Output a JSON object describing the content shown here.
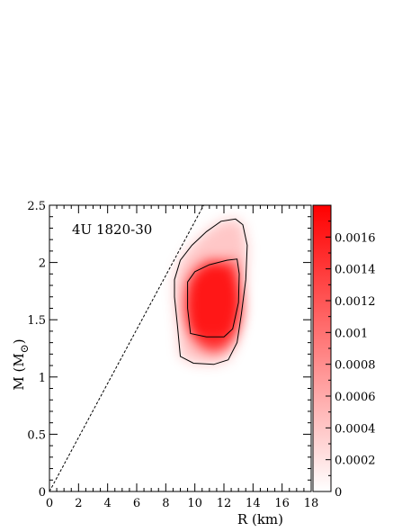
{
  "chart_data": {
    "type": "heatmap",
    "annotation": "4U 1820-30",
    "xlabel": "R (km)",
    "ylabel": "M (M",
    "ylabel_sub": "⊙",
    "ylabel_close": ")",
    "xlim": [
      0,
      18
    ],
    "ylim": [
      0,
      2.5
    ],
    "x_ticks": [
      "0",
      "2",
      "4",
      "6",
      "8",
      "10",
      "12",
      "14",
      "16",
      "18"
    ],
    "y_ticks": [
      "0",
      "0.5",
      "1",
      "1.5",
      "2",
      "2.5"
    ],
    "colorbar": {
      "range": [
        0,
        0.0018
      ],
      "ticks": [
        "0",
        "0.0002",
        "0.0004",
        "0.0006",
        "0.0008",
        "0.001",
        "0.0012",
        "0.0014",
        "0.0016"
      ],
      "color_min": "#ffffff",
      "color_max": "#ff0000"
    },
    "peak": {
      "R": 11.3,
      "M": 1.62,
      "value": 0.0017
    },
    "contours": [
      {
        "level": "outer",
        "points": [
          [
            8.6,
            1.85
          ],
          [
            9.0,
            2.02
          ],
          [
            9.8,
            2.15
          ],
          [
            10.8,
            2.27
          ],
          [
            11.8,
            2.36
          ],
          [
            12.8,
            2.38
          ],
          [
            13.3,
            2.33
          ],
          [
            13.6,
            2.15
          ],
          [
            13.5,
            1.85
          ],
          [
            13.2,
            1.55
          ],
          [
            12.9,
            1.3
          ],
          [
            12.3,
            1.15
          ],
          [
            11.3,
            1.11
          ],
          [
            9.9,
            1.12
          ],
          [
            9.0,
            1.18
          ],
          [
            8.8,
            1.45
          ],
          [
            8.6,
            1.7
          ]
        ]
      },
      {
        "level": "inner",
        "points": [
          [
            9.5,
            1.83
          ],
          [
            10.0,
            1.92
          ],
          [
            11.0,
            1.98
          ],
          [
            12.2,
            2.02
          ],
          [
            12.9,
            2.03
          ],
          [
            13.05,
            1.9
          ],
          [
            13.0,
            1.65
          ],
          [
            12.6,
            1.42
          ],
          [
            12.0,
            1.35
          ],
          [
            10.8,
            1.35
          ],
          [
            9.7,
            1.38
          ],
          [
            9.5,
            1.6
          ]
        ]
      }
    ],
    "reference_line": {
      "style": "dashed",
      "from": [
        0,
        0
      ],
      "to": [
        10.6,
        2.5
      ]
    }
  }
}
